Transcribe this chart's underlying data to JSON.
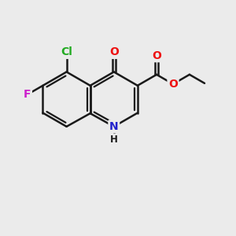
{
  "background_color": "#ebebeb",
  "bond_color": "#1a1a1a",
  "bond_width": 1.8,
  "atom_colors": {
    "O": "#ee1111",
    "N": "#2222cc",
    "Cl": "#22aa22",
    "F": "#cc22cc",
    "C": "#1a1a1a",
    "H": "#1a1a1a"
  },
  "font_size_atoms": 10,
  "font_size_small": 8.5
}
